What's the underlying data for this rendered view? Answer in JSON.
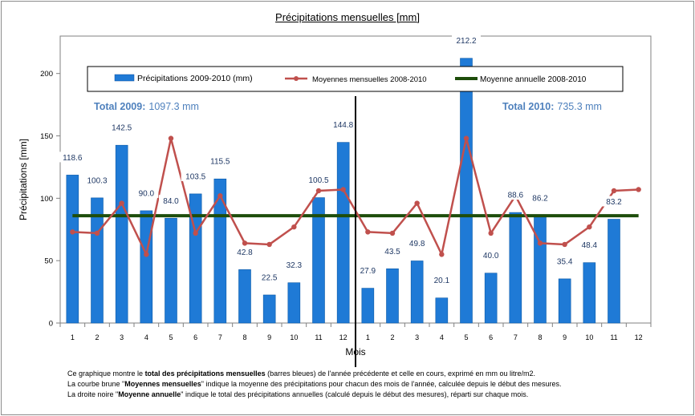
{
  "title": "Précipitations mensuelles [mm]",
  "chart_data": {
    "type": "bar",
    "title": "Précipitations mensuelles [mm]",
    "xlabel": "Mois",
    "ylabel": "Précipitations [mm]",
    "ylim": [
      0,
      230
    ],
    "yticks": [
      0,
      50,
      100,
      150,
      200
    ],
    "categories": [
      "1",
      "2",
      "3",
      "4",
      "5",
      "6",
      "7",
      "8",
      "9",
      "10",
      "11",
      "12",
      "1",
      "2",
      "3",
      "4",
      "5",
      "6",
      "7",
      "8",
      "9",
      "10",
      "11",
      "12"
    ],
    "grid": false,
    "legend": "top",
    "series": [
      {
        "name": "Précipitations 2009-2010  (mm)",
        "type": "bar",
        "color": "#1f7ad6",
        "values": [
          118.6,
          100.3,
          142.5,
          90.0,
          84.0,
          103.5,
          115.5,
          42.8,
          22.5,
          32.3,
          100.5,
          144.8,
          27.9,
          43.5,
          49.8,
          20.1,
          212.2,
          40.0,
          88.6,
          86.2,
          35.4,
          48.4,
          83.2,
          null
        ],
        "labels": [
          "118.6",
          "100.3",
          "142.5",
          "90.0",
          "84.0",
          "103.5",
          "115.5",
          "42.8",
          "22.5",
          "32.3",
          "100.5",
          "144.8",
          "27.9",
          "43.5",
          "49.8",
          "20.1",
          "212.2",
          "40.0",
          "88.6",
          "86.2",
          "35.4",
          "48.4",
          "83.2",
          ""
        ]
      },
      {
        "name": "Moyennes mensuelles 2008-2010",
        "type": "line",
        "color": "#c0504d",
        "values": [
          73,
          72,
          96,
          55,
          148,
          72,
          102,
          64,
          63,
          77,
          106,
          107,
          73,
          72,
          96,
          55,
          148,
          72,
          102,
          64,
          63,
          77,
          106,
          107
        ]
      },
      {
        "name": "Moyenne annuelle 2008-2010",
        "type": "line",
        "color": "#1e4d0b",
        "values": [
          86,
          86,
          86,
          86,
          86,
          86,
          86,
          86,
          86,
          86,
          86,
          86,
          86,
          86,
          86,
          86,
          86,
          86,
          86,
          86,
          86,
          86,
          86,
          86
        ]
      }
    ],
    "annotations": {
      "total_2009_label": "Total 2009:",
      "total_2009_value": "1097.3  mm",
      "total_2010_label": "Total 2010:",
      "total_2010_value": "735.3  mm"
    }
  },
  "caption": {
    "line1_a": "Ce graphique montre le ",
    "line1_b": "total des précipitations mensuelles",
    "line1_c": " (barres bleues) de l'année précédente et celle en cours, exprimé en mm ou litre/m2.",
    "line2_a": "La courbe brune \"",
    "line2_b": "Moyennes mensuelles",
    "line2_c": "\" indique la moyenne des précipitations pour chacun des mois de l'année, calculée depuis le début des mesures.",
    "line3_a": "La droite noire \"",
    "line3_b": "Moyenne annuelle",
    "line3_c": "\" indique le total des précipitations annuelles (calculé depuis le début des mesures), réparti sur chaque mois."
  }
}
